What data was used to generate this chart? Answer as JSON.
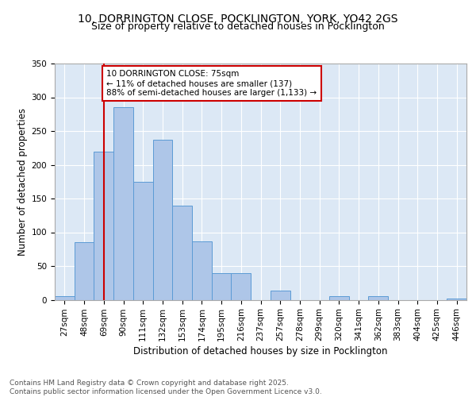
{
  "title": "10, DORRINGTON CLOSE, POCKLINGTON, YORK, YO42 2GS",
  "subtitle": "Size of property relative to detached houses in Pocklington",
  "xlabel": "Distribution of detached houses by size in Pocklington",
  "ylabel": "Number of detached properties",
  "bin_labels": [
    "27sqm",
    "48sqm",
    "69sqm",
    "90sqm",
    "111sqm",
    "132sqm",
    "153sqm",
    "174sqm",
    "195sqm",
    "216sqm",
    "237sqm",
    "257sqm",
    "278sqm",
    "299sqm",
    "320sqm",
    "341sqm",
    "362sqm",
    "383sqm",
    "404sqm",
    "425sqm",
    "446sqm"
  ],
  "bar_values": [
    5,
    85,
    220,
    285,
    175,
    237,
    140,
    87,
    40,
    40,
    0,
    13,
    0,
    0,
    5,
    0,
    5,
    0,
    0,
    0,
    2
  ],
  "bar_color": "#aec6e8",
  "bar_edge_color": "#5b9bd5",
  "vline_x": 2.0,
  "vline_color": "#cc0000",
  "annotation_box_text": "10 DORRINGTON CLOSE: 75sqm\n← 11% of detached houses are smaller (137)\n88% of semi-detached houses are larger (1,133) →",
  "annotation_box_color": "#cc0000",
  "ylim": [
    0,
    350
  ],
  "yticks": [
    0,
    50,
    100,
    150,
    200,
    250,
    300,
    350
  ],
  "background_color": "#dce8f5",
  "footer_text": "Contains HM Land Registry data © Crown copyright and database right 2025.\nContains public sector information licensed under the Open Government Licence v3.0.",
  "title_fontsize": 10,
  "subtitle_fontsize": 9,
  "axis_label_fontsize": 8.5,
  "tick_fontsize": 7.5,
  "footer_fontsize": 6.5
}
